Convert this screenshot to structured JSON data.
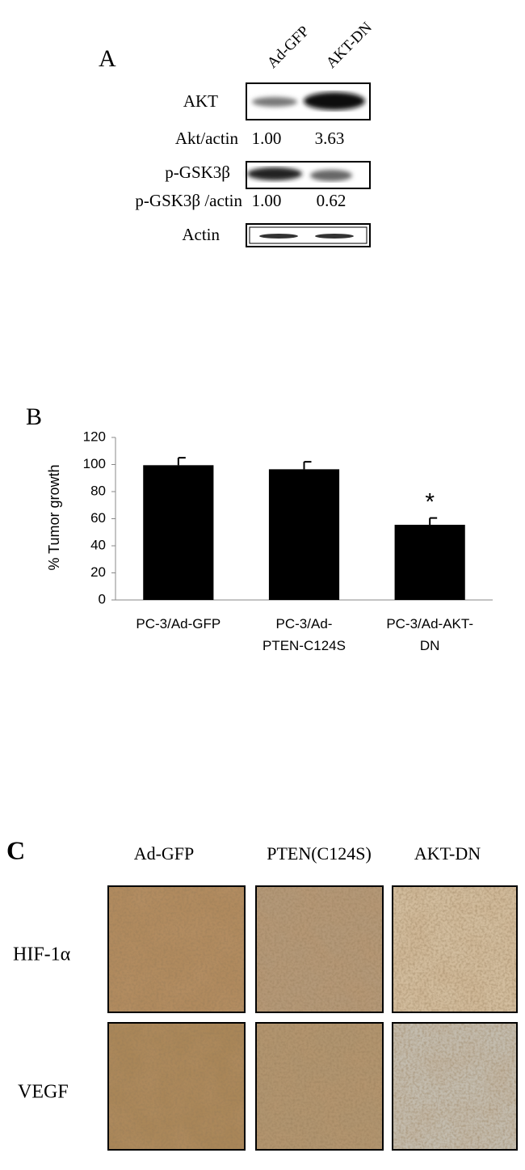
{
  "panel_a": {
    "label": "A",
    "lanes": [
      "Ad-GFP",
      "AKT-DN"
    ],
    "blots": [
      "AKT",
      "p-GSK3β",
      "Actin"
    ],
    "ratios": [
      {
        "label": "Akt/actin",
        "values": [
          "1.00",
          "3.63"
        ]
      },
      {
        "label": "p-GSK3β /actin",
        "values": [
          "1.00",
          "0.62"
        ]
      }
    ]
  },
  "chart_data": {
    "type": "bar",
    "panel_label": "B",
    "y_label": "% Tumor growth",
    "categories": [
      "PC-3/Ad-GFP",
      "PC-3/Ad-\nPTEN-C124S",
      "PC-3/Ad-AKT-\nDN"
    ],
    "values": [
      99.5,
      96.5,
      55.5
    ],
    "errors": [
      5.5,
      5.5,
      5
    ],
    "color": "#000000",
    "annotation": "*",
    "ylim": [
      0,
      120
    ],
    "yticks": [
      0,
      20,
      40,
      60,
      80,
      100,
      120
    ]
  },
  "panel_c": {
    "label": "C",
    "columns": [
      "Ad-GFP",
      "PTEN(C124S)",
      "AKT-DN"
    ],
    "rows": [
      "HIF-1α",
      "VEGF"
    ]
  }
}
